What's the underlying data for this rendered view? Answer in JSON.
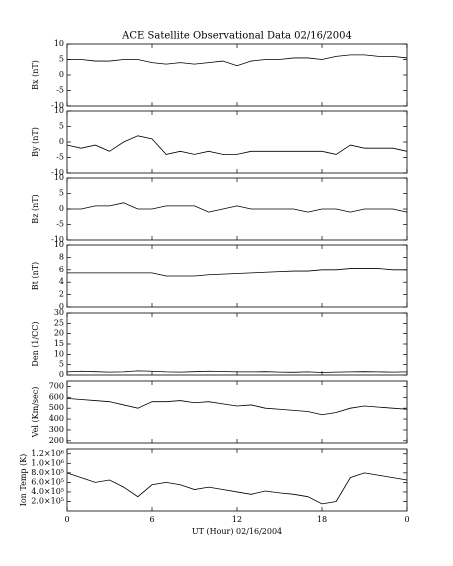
{
  "chart_data": [
    {
      "type": "line",
      "title": "ACE Satellite Observational Data  02/16/2004",
      "ylabel": "Bx (nT)",
      "color": "#000000",
      "x": [
        0,
        1,
        2,
        3,
        4,
        5,
        6,
        7,
        8,
        9,
        10,
        11,
        12,
        13,
        14,
        15,
        16,
        17,
        18,
        19,
        20,
        21,
        22,
        23,
        24
      ],
      "values": [
        5,
        5,
        4.5,
        4.5,
        5,
        5,
        4,
        3.5,
        4,
        3.5,
        4,
        4.5,
        3,
        4.5,
        5,
        5,
        5.5,
        5.5,
        5,
        6,
        6.5,
        6.5,
        6,
        6,
        5.5
      ],
      "xlim": [
        0,
        24
      ],
      "xticks": [
        0,
        6,
        12,
        18,
        24
      ],
      "ylim": [
        -10,
        10
      ],
      "yticks": [
        -10,
        -5,
        0,
        5,
        10
      ]
    },
    {
      "type": "line",
      "ylabel": "By (nT)",
      "color": "#000000",
      "x": [
        0,
        1,
        2,
        3,
        4,
        5,
        6,
        7,
        8,
        9,
        10,
        11,
        12,
        13,
        14,
        15,
        16,
        17,
        18,
        19,
        20,
        21,
        22,
        23,
        24
      ],
      "values": [
        -1,
        -2,
        -1,
        -3,
        0,
        2,
        1,
        -4,
        -3,
        -4,
        -3,
        -4,
        -4,
        -3,
        -3,
        -3,
        -3,
        -3,
        -3,
        -4,
        -1,
        -2,
        -2,
        -2,
        -3
      ],
      "xlim": [
        0,
        24
      ],
      "xticks": [
        0,
        6,
        12,
        18,
        24
      ],
      "ylim": [
        -10,
        10
      ],
      "yticks": [
        -10,
        -5,
        0,
        5,
        10
      ]
    },
    {
      "type": "line",
      "ylabel": "Bz (nT)",
      "color": "#000000",
      "x": [
        0,
        1,
        2,
        3,
        4,
        5,
        6,
        7,
        8,
        9,
        10,
        11,
        12,
        13,
        14,
        15,
        16,
        17,
        18,
        19,
        20,
        21,
        22,
        23,
        24
      ],
      "values": [
        0,
        0,
        1,
        1,
        2,
        0,
        0,
        1,
        1,
        1,
        -1,
        0,
        1,
        0,
        0,
        0,
        0,
        -1,
        0,
        0,
        -1,
        0,
        0,
        0,
        -1
      ],
      "xlim": [
        0,
        24
      ],
      "xticks": [
        0,
        6,
        12,
        18,
        24
      ],
      "ylim": [
        -10,
        10
      ],
      "yticks": [
        -10,
        -5,
        0,
        5,
        10
      ]
    },
    {
      "type": "line",
      "ylabel": "Bt (nT)",
      "color": "#000000",
      "x": [
        0,
        1,
        2,
        3,
        4,
        5,
        6,
        7,
        8,
        9,
        10,
        11,
        12,
        13,
        14,
        15,
        16,
        17,
        18,
        19,
        20,
        21,
        22,
        23,
        24
      ],
      "values": [
        5.5,
        5.5,
        5.5,
        5.5,
        5.5,
        5.5,
        5.5,
        5,
        5,
        5,
        5.2,
        5.3,
        5.4,
        5.5,
        5.6,
        5.7,
        5.8,
        5.8,
        6,
        6,
        6.2,
        6.2,
        6.2,
        6,
        6
      ],
      "xlim": [
        0,
        24
      ],
      "xticks": [
        0,
        6,
        12,
        18,
        24
      ],
      "ylim": [
        0,
        10
      ],
      "yticks": [
        0,
        2,
        4,
        6,
        8,
        10
      ]
    },
    {
      "type": "line",
      "ylabel": "Den (1/CC)",
      "color": "#000000",
      "x": [
        0,
        1,
        2,
        3,
        4,
        5,
        6,
        7,
        8,
        9,
        10,
        11,
        12,
        13,
        14,
        15,
        16,
        17,
        18,
        19,
        20,
        21,
        22,
        23,
        24
      ],
      "values": [
        1.5,
        1.8,
        1.6,
        1.4,
        1.5,
        2,
        1.8,
        1.5,
        1.4,
        1.6,
        1.8,
        1.7,
        1.5,
        1.5,
        1.6,
        1.4,
        1.3,
        1.5,
        1.2,
        1.4,
        1.5,
        1.6,
        1.5,
        1.4,
        1.5
      ],
      "xlim": [
        0,
        24
      ],
      "xticks": [
        0,
        6,
        12,
        18,
        24
      ],
      "ylim": [
        0,
        30
      ],
      "yticks": [
        0,
        5,
        10,
        15,
        20,
        25,
        30
      ]
    },
    {
      "type": "line",
      "ylabel": "Vel (Km/sec)",
      "color": "#000000",
      "x": [
        0,
        1,
        2,
        3,
        4,
        5,
        6,
        7,
        8,
        9,
        10,
        11,
        12,
        13,
        14,
        15,
        16,
        17,
        18,
        19,
        20,
        21,
        22,
        23,
        24
      ],
      "values": [
        590,
        580,
        570,
        560,
        530,
        500,
        560,
        560,
        570,
        550,
        560,
        540,
        520,
        530,
        500,
        490,
        480,
        470,
        440,
        460,
        500,
        520,
        510,
        500,
        490
      ],
      "xlim": [
        0,
        24
      ],
      "xticks": [
        0,
        6,
        12,
        18,
        24
      ],
      "ylim": [
        180,
        750
      ],
      "yticks": [
        200,
        300,
        400,
        500,
        600,
        700
      ]
    },
    {
      "type": "line",
      "ylabel": "Ion Temp (K)",
      "xlabel": "UT (Hour)  02/16/2004",
      "color": "#000000",
      "x": [
        0,
        1,
        2,
        3,
        4,
        5,
        6,
        7,
        8,
        9,
        10,
        11,
        12,
        13,
        14,
        15,
        16,
        17,
        18,
        19,
        20,
        21,
        22,
        23,
        24
      ],
      "values": [
        800000,
        700000,
        600000,
        650000,
        500000,
        300000,
        550000,
        600000,
        550000,
        450000,
        500000,
        450000,
        400000,
        350000,
        420000,
        380000,
        350000,
        300000,
        150000,
        200000,
        700000,
        800000,
        750000,
        700000,
        650000
      ],
      "xlim": [
        0,
        24
      ],
      "xticks": [
        0,
        6,
        12,
        18,
        {
          "value": 24,
          "label": "0"
        }
      ],
      "ylim": [
        0,
        1300000
      ],
      "yticks": [
        {
          "value": 200000,
          "label": "2.0×10⁵"
        },
        {
          "value": 400000,
          "label": "4.0×10⁵"
        },
        {
          "value": 600000,
          "label": "6.0×10⁵"
        },
        {
          "value": 800000,
          "label": "8.0×10⁵"
        },
        {
          "value": 1000000,
          "label": "1.0×10⁶"
        },
        {
          "value": 1200000,
          "label": "1.2×10⁶"
        }
      ]
    }
  ]
}
